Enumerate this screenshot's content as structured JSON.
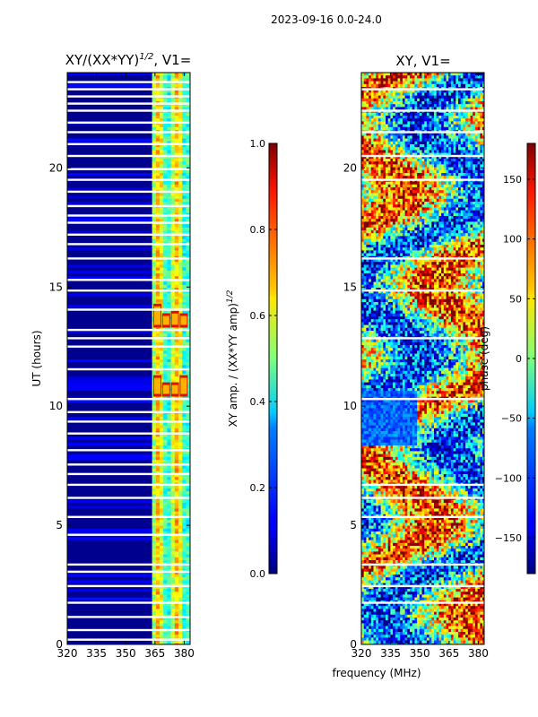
{
  "page": {
    "suptitle": "2023-09-16 0.0-24.0"
  },
  "chart_data": [
    {
      "type": "heatmap",
      "title": "XY/(XX*YY)",
      "title_exp": "1/2",
      "title_suffix": ", V1=",
      "xlabel": "",
      "ylabel": "UT (hours)",
      "xlim": [
        320,
        383
      ],
      "ylim": [
        0,
        24
      ],
      "xticks": [
        320,
        335,
        350,
        365,
        380
      ],
      "yticks": [
        0,
        5,
        10,
        15,
        20
      ],
      "gap_rows": [
        0.2,
        0.6,
        1.15,
        1.75,
        2.45,
        3.05,
        3.35,
        4.6,
        5.35,
        6.15,
        6.7,
        7.15,
        7.55,
        8.15,
        8.85,
        9.35,
        9.75,
        10.3,
        11.55,
        12.5,
        12.85,
        13.2,
        14.05,
        14.85,
        15.3,
        16.2,
        16.8,
        17.2,
        17.7,
        18.0,
        18.4,
        19.0,
        19.5,
        19.95,
        20.5,
        21.0,
        21.5,
        21.9,
        22.4,
        22.7,
        23.0,
        23.3,
        23.6
      ],
      "hot_cells": [
        {
          "x": 366,
          "y0": 10.4,
          "y1": 11.3
        },
        {
          "x": 370.5,
          "y0": 10.4,
          "y1": 11.0
        },
        {
          "x": 375,
          "y0": 10.4,
          "y1": 11.0
        },
        {
          "x": 379.5,
          "y0": 10.4,
          "y1": 11.3
        },
        {
          "x": 366,
          "y0": 13.3,
          "y1": 14.3
        },
        {
          "x": 370.5,
          "y0": 13.3,
          "y1": 13.9
        },
        {
          "x": 375,
          "y0": 13.3,
          "y1": 14.0
        },
        {
          "x": 379.5,
          "y0": 13.3,
          "y1": 13.9
        }
      ],
      "colorbar": {
        "label": "XY amp. / (XX*YY amp)",
        "label_exp": "1/2",
        "range": [
          0.0,
          1.0
        ],
        "ticks": [
          "0.0",
          "0.2",
          "0.4",
          "0.6",
          "0.8",
          "1.0"
        ]
      }
    },
    {
      "type": "heatmap",
      "title": "XY, V1=",
      "xlabel": "frequency (MHz)",
      "ylabel": "",
      "xlim": [
        320,
        383
      ],
      "ylim": [
        0,
        24
      ],
      "xticks": [
        320,
        335,
        350,
        365,
        380
      ],
      "yticks": [
        0,
        5,
        10,
        15,
        20
      ],
      "gap_rows": [
        1.75,
        2.45,
        3.35,
        5.35,
        6.15,
        6.7,
        10.3,
        12.85,
        14.85,
        16.2,
        19.5,
        20.5,
        21.5,
        22.4,
        23.3
      ],
      "colorbar": {
        "label": "phase (deg)",
        "range": [
          -180,
          180
        ],
        "ticks": [
          "−150",
          "−100",
          "−50",
          "0",
          "50",
          "100",
          "150"
        ],
        "tick_values": [
          -150,
          -100,
          -50,
          0,
          50,
          100,
          150
        ]
      }
    }
  ],
  "colors": {
    "jet_low": "#00007f",
    "jet_high": "#7f0000",
    "gap": "#ffffff"
  }
}
